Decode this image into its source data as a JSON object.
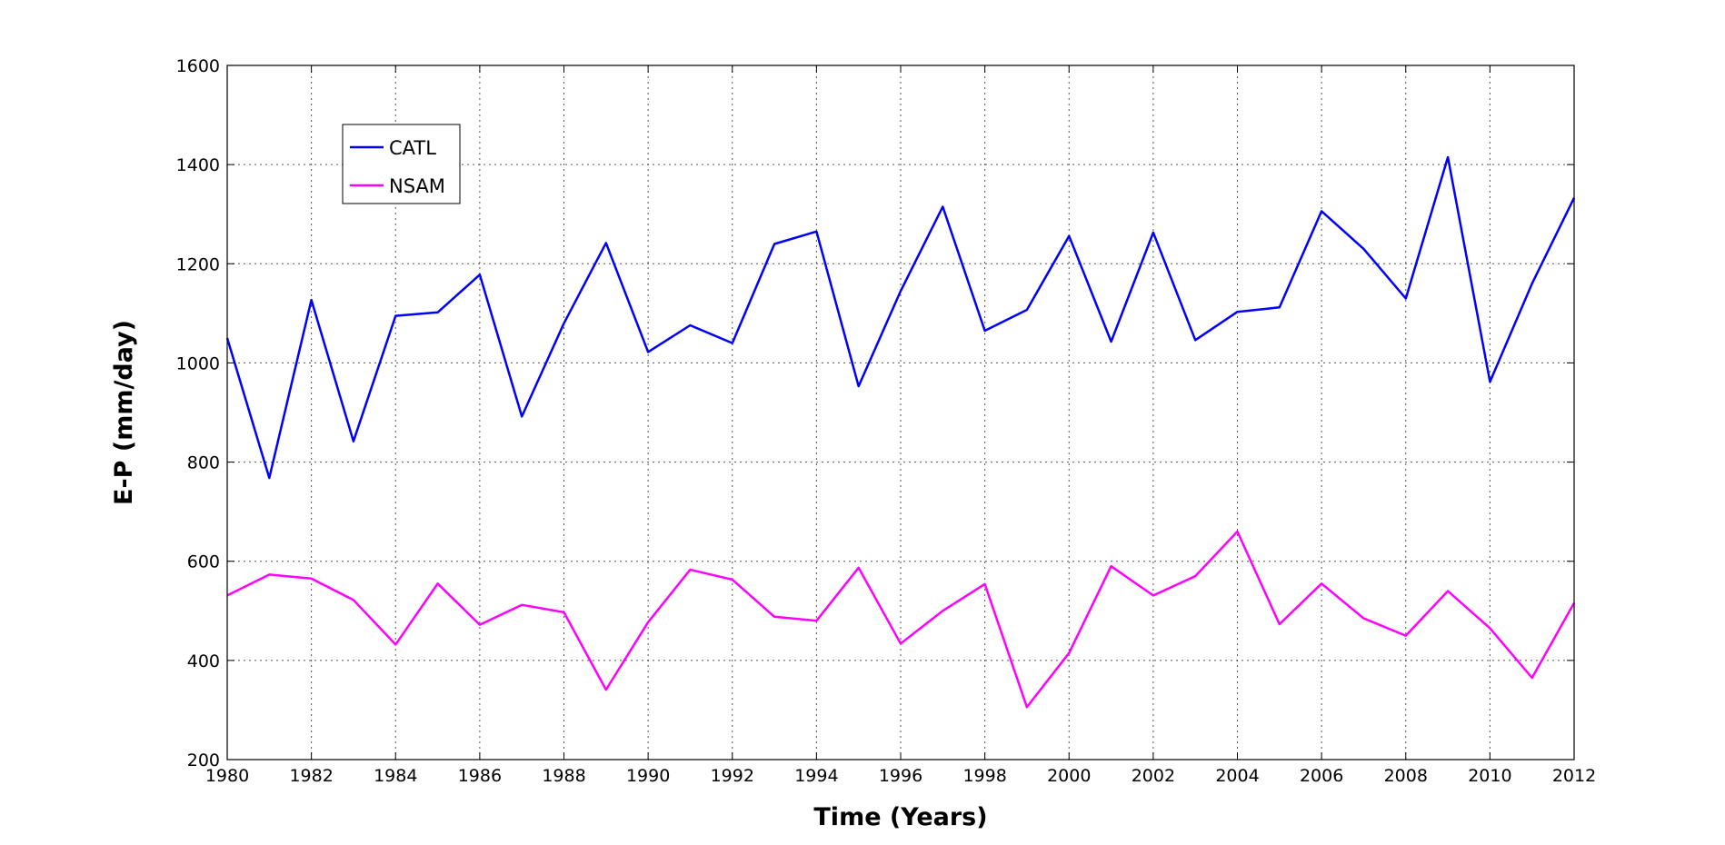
{
  "chart_data": {
    "type": "line",
    "title": "",
    "xlabel": "Time (Years)",
    "ylabel": "E-P (mm/day)",
    "xlim": [
      1980,
      2012
    ],
    "ylim": [
      200,
      1600
    ],
    "xticks": [
      1980,
      1982,
      1984,
      1986,
      1988,
      1990,
      1992,
      1994,
      1996,
      1998,
      2000,
      2002,
      2004,
      2006,
      2008,
      2010,
      2012
    ],
    "yticks": [
      200,
      400,
      600,
      800,
      1000,
      1200,
      1400,
      1600
    ],
    "grid": true,
    "legend_position": "top-left",
    "x": [
      1980,
      1981,
      1982,
      1983,
      1984,
      1985,
      1986,
      1987,
      1988,
      1989,
      1990,
      1991,
      1992,
      1993,
      1994,
      1995,
      1996,
      1997,
      1998,
      1999,
      2000,
      2001,
      2002,
      2003,
      2004,
      2005,
      2006,
      2007,
      2008,
      2009,
      2010,
      2011,
      2012
    ],
    "series": [
      {
        "name": "CATL",
        "color": "#0000ff",
        "values": [
          1050,
          768,
          1127,
          842,
          1095,
          1102,
          1178,
          892,
          1080,
          1242,
          1022,
          1076,
          1040,
          1240,
          1265,
          953,
          1145,
          1315,
          1065,
          1107,
          1256,
          1043,
          1263,
          1046,
          1103,
          1112,
          1306,
          1230,
          1130,
          1415,
          962,
          1160,
          1333
        ]
      },
      {
        "name": "NSAM",
        "color": "#ff00ff",
        "values": [
          531,
          573,
          565,
          522,
          432,
          555,
          472,
          512,
          497,
          341,
          477,
          583,
          563,
          488,
          480,
          587,
          434,
          500,
          554,
          306,
          415,
          590,
          531,
          570,
          660,
          473,
          555,
          485,
          450,
          540,
          465,
          365,
          516
        ]
      }
    ]
  }
}
